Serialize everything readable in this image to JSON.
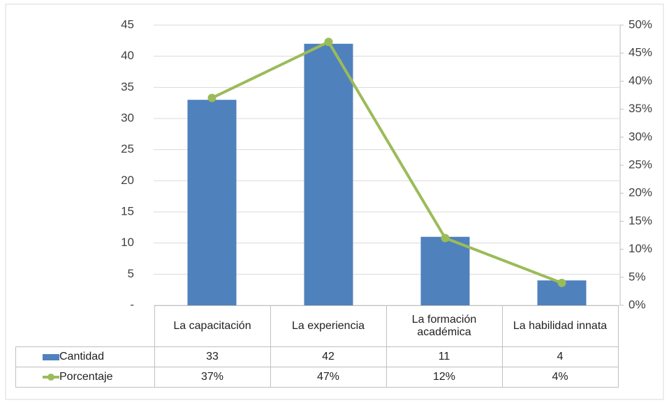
{
  "chart_data": {
    "type": "bar",
    "categories": [
      "La capacitación",
      "La experiencia",
      "La formación académica",
      "La habilidad innata"
    ],
    "series": [
      {
        "name": "Cantidad",
        "type": "bar",
        "color": "#4f81bd",
        "values": [
          33,
          42,
          11,
          4
        ]
      },
      {
        "name": "Porcentaje",
        "type": "line",
        "axis": "y2",
        "color": "#9bbb59",
        "values": [
          37,
          47,
          12,
          4
        ],
        "value_labels": [
          "37%",
          "47%",
          "12%",
          "4%"
        ]
      }
    ],
    "ylim": [
      0,
      45
    ],
    "yticks": [
      {
        "value": 0,
        "label": "-"
      },
      5,
      10,
      15,
      20,
      25,
      30,
      35,
      40,
      45
    ],
    "y2lim": [
      0,
      50
    ],
    "y2ticks": [
      {
        "value": 0,
        "label": "0%"
      },
      {
        "value": 5,
        "label": "5%"
      },
      {
        "value": 10,
        "label": "10%"
      },
      {
        "value": 15,
        "label": "15%"
      },
      {
        "value": 20,
        "label": "20%"
      },
      {
        "value": 25,
        "label": "25%"
      },
      {
        "value": 30,
        "label": "30%"
      },
      {
        "value": 35,
        "label": "35%"
      },
      {
        "value": 40,
        "label": "40%"
      },
      {
        "value": 45,
        "label": "45%"
      },
      {
        "value": 50,
        "label": "50%"
      }
    ],
    "grid": true
  }
}
